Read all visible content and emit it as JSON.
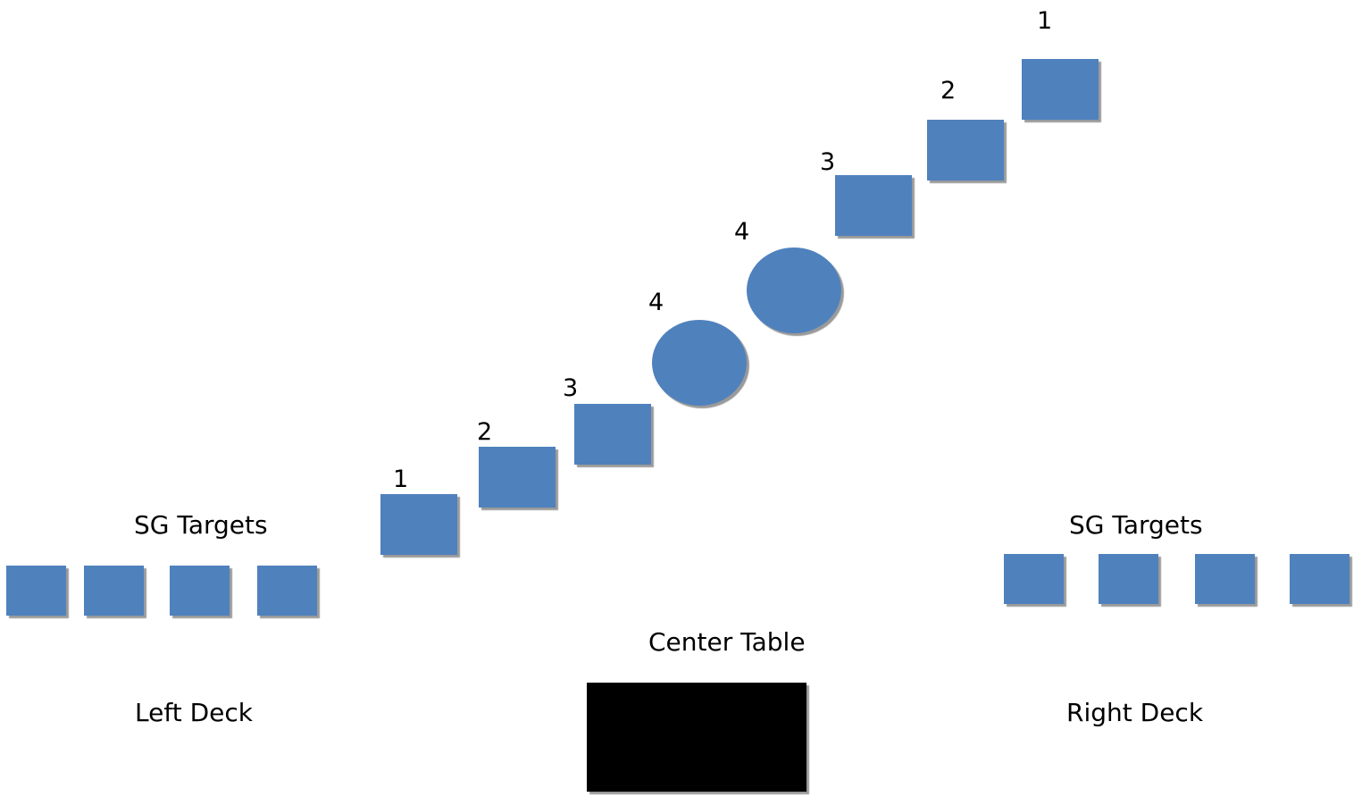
{
  "diagram": {
    "left_targets_label": "SG Targets",
    "right_targets_label": "SG Targets",
    "center_table_label": "Center Table",
    "left_deck_label": "Left Deck",
    "right_deck_label": "Right Deck",
    "path_numbers": [
      "1",
      "2",
      "3",
      "4",
      "4",
      "3",
      "2",
      "1"
    ],
    "shape_color": "#4f81bd",
    "table_color": "#000000"
  }
}
